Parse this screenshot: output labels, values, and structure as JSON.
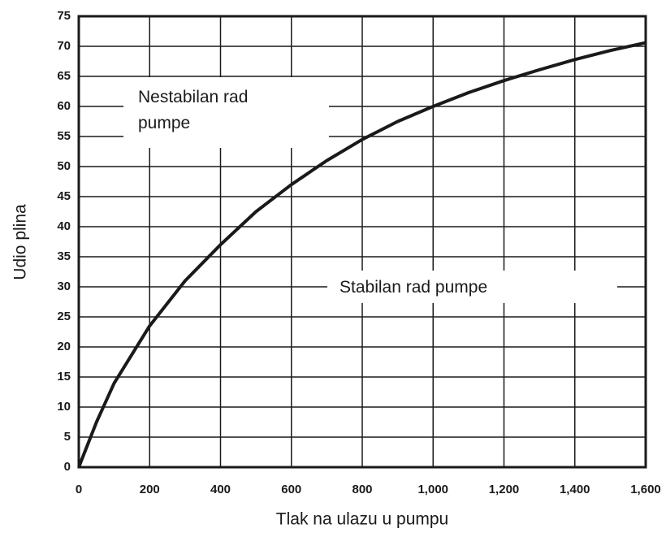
{
  "chart_data": {
    "type": "line",
    "xlabel": "Tlak na ulazu u pumpu",
    "ylabel": "Udio plina",
    "x": [
      0,
      50,
      100,
      200,
      300,
      400,
      500,
      600,
      700,
      800,
      900,
      1000,
      1100,
      1200,
      1300,
      1400,
      1500,
      1600
    ],
    "series": [
      {
        "color": "#1a1a1a",
        "values": [
          0,
          7.5,
          14,
          23.5,
          31,
          37,
          42.5,
          47,
          51,
          54.5,
          57.5,
          60,
          62.3,
          64.3,
          66.1,
          67.8,
          69.3,
          70.6
        ]
      }
    ],
    "xlim": [
      0,
      1600
    ],
    "xticks": [
      0,
      200,
      400,
      600,
      800,
      {
        "value": 1000,
        "label": "1,000"
      },
      {
        "value": 1200,
        "label": "1,200"
      },
      {
        "value": 1400,
        "label": "1,400"
      },
      {
        "value": 1600,
        "label": "1,600"
      }
    ],
    "ylim": [
      0,
      75
    ],
    "yticks": [
      0,
      5,
      10,
      15,
      20,
      25,
      30,
      35,
      40,
      45,
      50,
      55,
      60,
      65,
      70,
      75
    ],
    "grid": true,
    "annotations": [
      [
        "Nestabilan rad",
        "pumpe"
      ],
      [
        "Stabilan rad pumpe"
      ]
    ]
  }
}
